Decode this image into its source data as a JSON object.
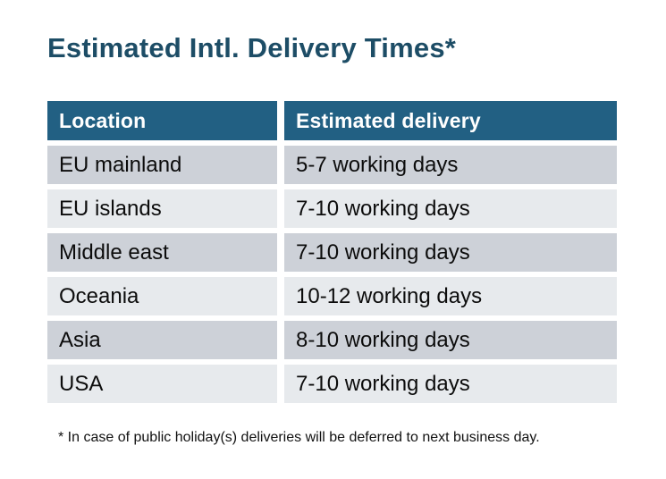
{
  "page": {
    "title": "Estimated Intl. Delivery Times*",
    "footnote": "* In case of public holiday(s) deliveries will be deferred to next business day."
  },
  "table": {
    "headers": [
      "Location",
      "Estimated delivery"
    ],
    "rows": [
      {
        "location": "EU mainland",
        "delivery": "5-7 working days"
      },
      {
        "location": "EU islands",
        "delivery": "7-10 working days"
      },
      {
        "location": "Middle east",
        "delivery": "7-10 working days"
      },
      {
        "location": "Oceania",
        "delivery": "10-12 working days"
      },
      {
        "location": "Asia",
        "delivery": "8-10 working days"
      },
      {
        "location": "USA",
        "delivery": "7-10 working days"
      }
    ]
  },
  "colors": {
    "title_text": "#1d4d66",
    "header_bg": "#226083",
    "header_text": "#ffffff",
    "row_dark_bg": "#cdd1d8",
    "row_light_bg": "#e7eaed",
    "body_text": "#0c0c0c",
    "background": "#ffffff"
  }
}
